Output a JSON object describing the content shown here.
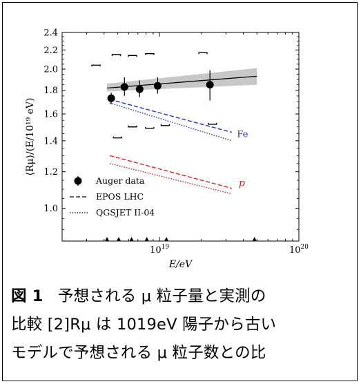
{
  "figure": {
    "caption_label": "図 1",
    "caption_lines": [
      "予想される μ 粒子量と実測の",
      "比較 [2]Rμ は 1019eV 陽子から古い",
      "モデルで予想される μ 粒子数との比"
    ]
  },
  "chart_data": {
    "type": "scatter",
    "x_scale": "log",
    "y_scale": "log",
    "xlim": [
      2e+18,
      1e+20
    ],
    "ylim": [
      0.85,
      2.4
    ],
    "xlabel": "E/eV",
    "ylabel": "⟨Rμ⟩/(E/10¹⁹ eV)",
    "x_ticks": [
      {
        "value": 1e+19,
        "base": "10",
        "exp": "19"
      },
      {
        "value": 1e+20,
        "base": "10",
        "exp": "20"
      }
    ],
    "y_ticks": [
      {
        "value": 1.0,
        "label": "1.0"
      },
      {
        "value": 1.2,
        "label": "1.2"
      },
      {
        "value": 1.4,
        "label": "1.4"
      },
      {
        "value": 1.6,
        "label": "1.6"
      },
      {
        "value": 1.8,
        "label": "1.8"
      },
      {
        "value": 2.0,
        "label": "2.0"
      },
      {
        "value": 2.2,
        "label": "2.2"
      },
      {
        "value": 2.4,
        "label": "2.4"
      }
    ],
    "auger_points": [
      {
        "x": 4.5e+18,
        "y": 1.73,
        "ylo": 1.68,
        "yhi": 1.78
      },
      {
        "x": 5.6e+18,
        "y": 1.83,
        "ylo": 1.75,
        "yhi": 1.92
      },
      {
        "x": 7.2e+18,
        "y": 1.81,
        "ylo": 1.74,
        "yhi": 1.89
      },
      {
        "x": 9.7e+18,
        "y": 1.84,
        "ylo": 1.77,
        "yhi": 1.92
      },
      {
        "x": 2.3e+19,
        "y": 1.85,
        "ylo": 1.71,
        "yhi": 1.99
      }
    ],
    "fit_line": {
      "x": [
        4.2e+18,
        5e+19
      ],
      "y": [
        1.82,
        1.93
      ]
    },
    "fit_band": {
      "x": [
        4.2e+18,
        5e+19
      ],
      "lower": [
        1.79,
        1.85
      ],
      "upper": [
        1.86,
        2.01
      ]
    },
    "systematic_brackets": {
      "upper": [
        {
          "x": 3.5e+18,
          "y": 2.04
        },
        {
          "x": 4.9e+18,
          "y": 2.15
        },
        {
          "x": 6.4e+18,
          "y": 2.14
        },
        {
          "x": 8.5e+18,
          "y": 2.16
        },
        {
          "x": 2.05e+19,
          "y": 2.17
        }
      ],
      "lower": [
        {
          "x": 5e+18,
          "y": 1.42
        },
        {
          "x": 6.4e+18,
          "y": 1.5
        },
        {
          "x": 8.5e+18,
          "y": 1.49
        },
        {
          "x": 1.1e+19,
          "y": 1.51
        },
        {
          "x": 2.4e+19,
          "y": 1.52
        }
      ]
    },
    "bin_edges": [
      4.2e+18,
      5.1e+18,
      6.3e+18,
      8.1e+18,
      1.12e+19,
      4.8e+19
    ],
    "series": [
      {
        "name": "Auger data",
        "style": "marker",
        "color": "#000000"
      },
      {
        "name": "EPOS LHC",
        "style": "dashed",
        "color": "#000000"
      },
      {
        "name": "QGSJET II-04",
        "style": "dotted",
        "color": "#000000"
      }
    ],
    "model_curves": [
      {
        "label": "Fe",
        "color": "#1f2fd6",
        "style": "dashed",
        "x": [
          4.4e+18,
          3.3e+19
        ],
        "y": [
          1.72,
          1.46
        ]
      },
      {
        "label": "Fe",
        "color": "#1f2fd6",
        "style": "dotted",
        "x": [
          4.4e+18,
          3.3e+19
        ],
        "y": [
          1.69,
          1.4
        ]
      },
      {
        "label": "p",
        "color": "#d62020",
        "style": "dashed",
        "x": [
          4.4e+18,
          3.3e+19
        ],
        "y": [
          1.3,
          1.105
        ]
      },
      {
        "label": "p",
        "color": "#d62020",
        "style": "dotted",
        "x": [
          4.4e+18,
          3.3e+19
        ],
        "y": [
          1.25,
          1.075
        ]
      }
    ],
    "curve_labels": {
      "fe": "Fe",
      "p": "p"
    },
    "legend": {
      "placement": "bottom-left",
      "entries": [
        {
          "label": "Auger data"
        },
        {
          "label": "EPOS LHC"
        },
        {
          "label": "QGSJET II-04"
        }
      ]
    }
  }
}
